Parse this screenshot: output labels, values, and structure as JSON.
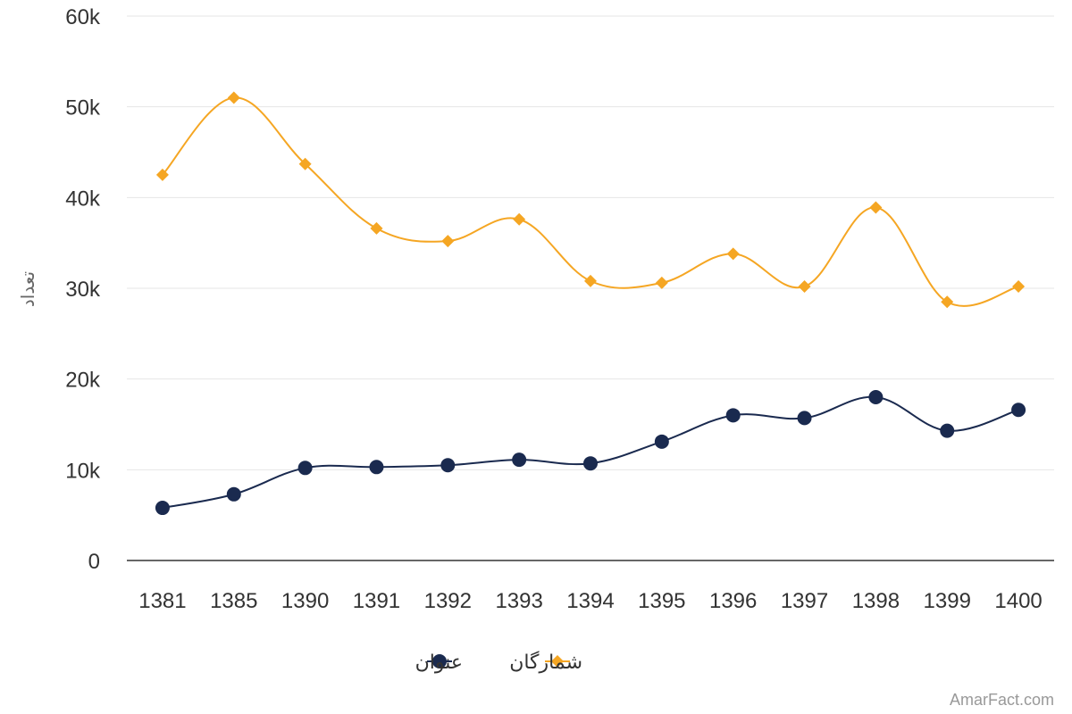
{
  "chart_data": {
    "type": "line",
    "title": "",
    "xlabel": "",
    "ylabel": "تعداد",
    "ylim": [
      0,
      60000
    ],
    "yticks": [
      {
        "value": 0,
        "label": "0"
      },
      {
        "value": 10000,
        "label": "10k"
      },
      {
        "value": 20000,
        "label": "20k"
      },
      {
        "value": 30000,
        "label": "30k"
      },
      {
        "value": 40000,
        "label": "40k"
      },
      {
        "value": 50000,
        "label": "50k"
      },
      {
        "value": 60000,
        "label": "60k"
      }
    ],
    "categories": [
      "1381",
      "1385",
      "1390",
      "1391",
      "1392",
      "1393",
      "1394",
      "1395",
      "1396",
      "1397",
      "1398",
      "1399",
      "1400"
    ],
    "series": [
      {
        "name": "عنوان",
        "color": "#1a2a4f",
        "marker": "circle",
        "values": [
          5800,
          7300,
          10200,
          10300,
          10500,
          11100,
          10700,
          13100,
          16000,
          15700,
          18000,
          14300,
          16600
        ]
      },
      {
        "name": "شمارگان",
        "color": "#f5a623",
        "marker": "diamond",
        "values": [
          42500,
          51000,
          43700,
          36600,
          35200,
          37600,
          30800,
          30600,
          33800,
          30200,
          38900,
          28500,
          30200
        ]
      }
    ],
    "grid": true,
    "legend_position": "bottom-center",
    "credit": "AmarFact.com"
  }
}
